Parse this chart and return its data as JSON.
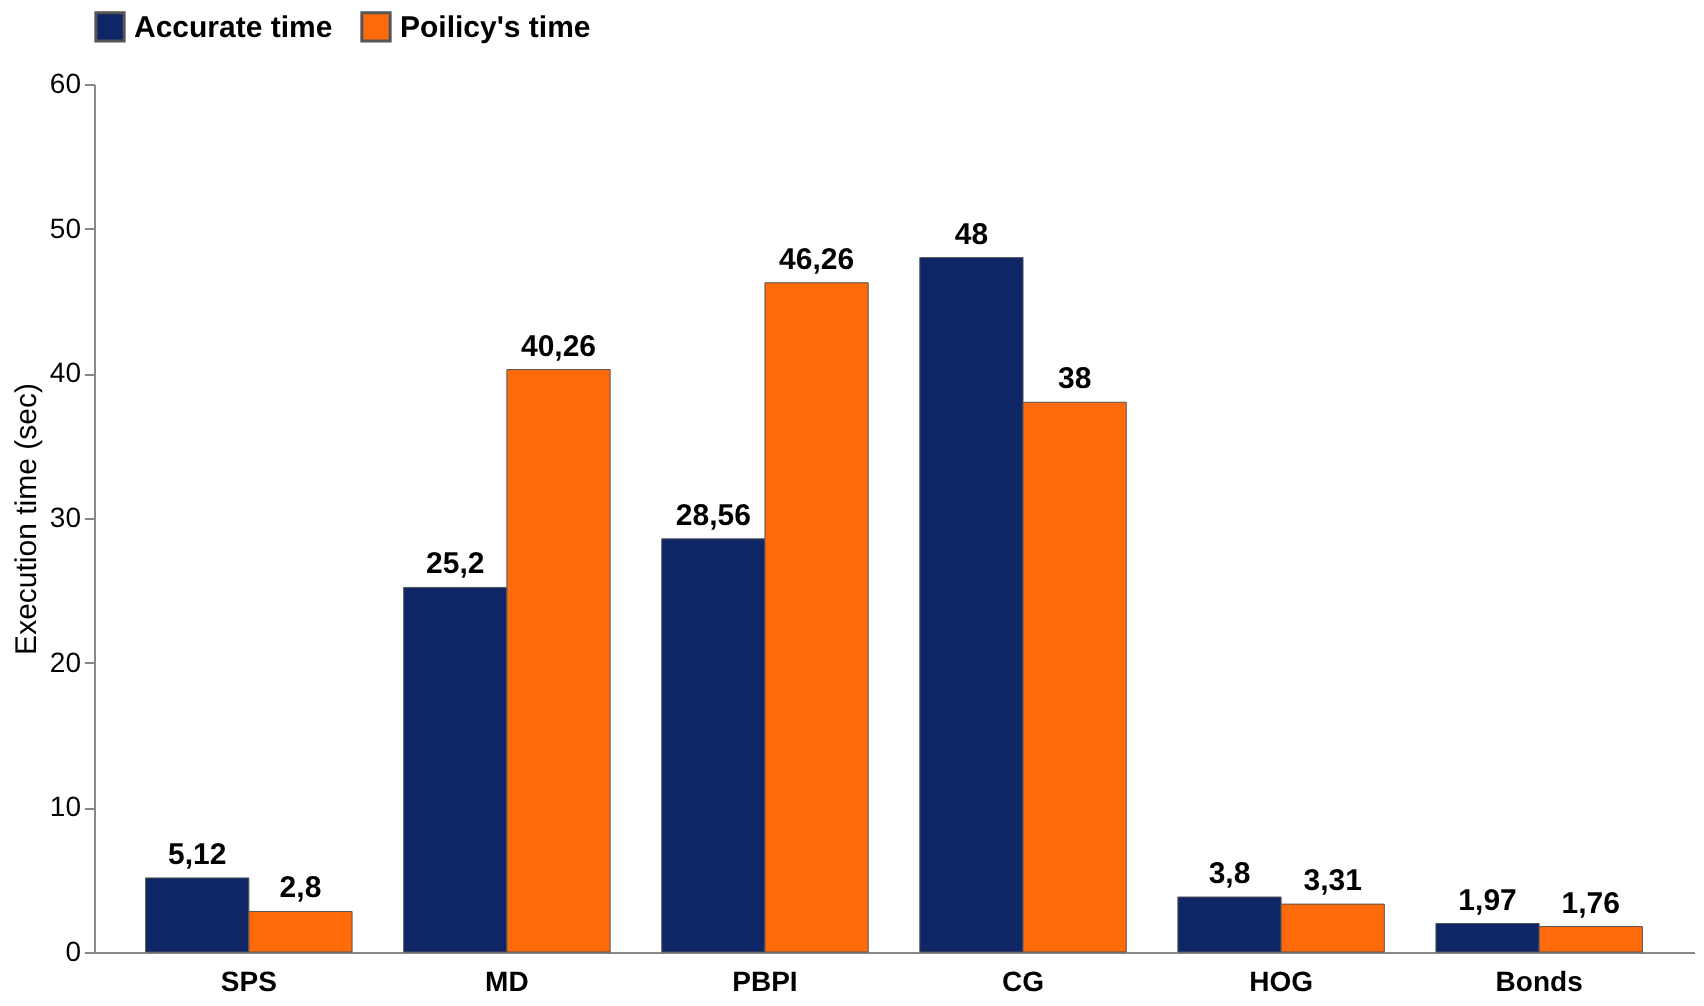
{
  "chart_data": {
    "type": "bar",
    "ylabel": "Execution time (sec)",
    "categories": [
      "SPS",
      "MD",
      "PBPI",
      "CG",
      "HOG",
      "Bonds"
    ],
    "series": [
      {
        "name": "Accurate time",
        "color": "#0e2566",
        "values": [
          5.12,
          25.2,
          28.56,
          48,
          3.8,
          1.97
        ],
        "value_labels": [
          "5,12",
          "25,2",
          "28,56",
          "48",
          "3,8",
          "1,97"
        ]
      },
      {
        "name": "Poilicy's time",
        "color": "#ff6a0a",
        "values": [
          2.8,
          40.26,
          46.26,
          38,
          3.31,
          1.76
        ],
        "value_labels": [
          "2,8",
          "40,26",
          "46,26",
          "38",
          "3,31",
          "1,76"
        ]
      }
    ],
    "ylim": [
      0,
      60
    ],
    "yticks": [
      0,
      10,
      20,
      30,
      40,
      50,
      60
    ],
    "grid": false,
    "legend": "top"
  }
}
